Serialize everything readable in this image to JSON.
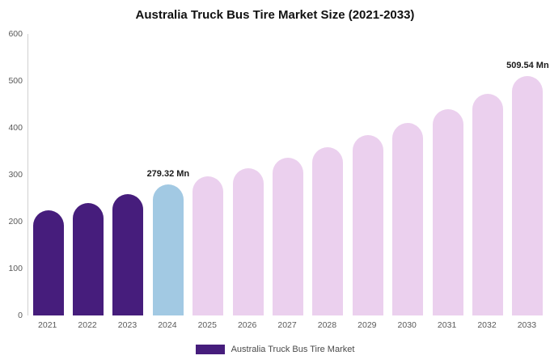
{
  "title": "Australia Truck Bus Tire Market Size (2021-2033)",
  "legend": {
    "label": "Australia Truck Bus Tire Market"
  },
  "chart_data": {
    "type": "bar",
    "title": "Australia Truck Bus Tire Market Size (2021-2033)",
    "categories": [
      "2021",
      "2022",
      "2023",
      "2024",
      "2025",
      "2026",
      "2027",
      "2028",
      "2029",
      "2030",
      "2031",
      "2032",
      "2033"
    ],
    "values": [
      224,
      240,
      258,
      279.32,
      296,
      314,
      336,
      358,
      384,
      410,
      440,
      472,
      509.54
    ],
    "xlabel": "",
    "ylabel": "",
    "ylim": [
      0,
      600
    ],
    "yticks": [
      0,
      100,
      200,
      300,
      400,
      500,
      600
    ],
    "grid": false,
    "legend_position": "bottom",
    "colors": {
      "historical": "#461d7c",
      "current": "#a2c9e3",
      "forecast": "#ebd0ee"
    },
    "bar_color_keys": [
      "historical",
      "historical",
      "historical",
      "current",
      "forecast",
      "forecast",
      "forecast",
      "forecast",
      "forecast",
      "forecast",
      "forecast",
      "forecast",
      "forecast"
    ],
    "annotations": [
      {
        "index": 3,
        "text": "279.32 Mn"
      },
      {
        "index": 12,
        "text": "509.54 Mn"
      }
    ]
  }
}
